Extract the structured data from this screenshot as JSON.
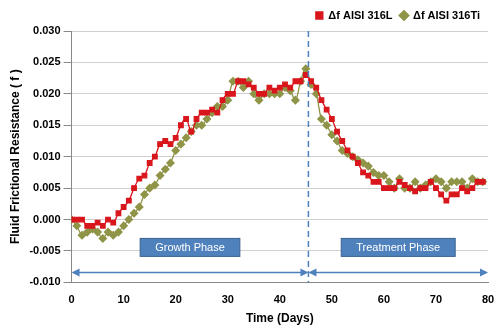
{
  "chart_data": {
    "type": "line",
    "x_label": "Time (Days)",
    "y_label": "Fluid Frictional Resistance ( f )",
    "x": [
      0,
      1,
      2,
      3,
      4,
      5,
      6,
      7,
      8,
      9,
      10,
      11,
      12,
      13,
      14,
      15,
      16,
      17,
      18,
      19,
      20,
      21,
      22,
      23,
      24,
      25,
      26,
      27,
      28,
      29,
      30,
      31,
      32,
      33,
      34,
      35,
      36,
      37,
      38,
      39,
      40,
      41,
      42,
      43,
      44,
      45,
      46,
      47,
      48,
      49,
      50,
      51,
      52,
      53,
      54,
      55,
      56,
      57,
      58,
      59,
      60,
      61,
      62,
      63,
      64,
      65,
      66,
      67,
      68,
      69,
      70,
      71,
      72,
      73,
      74,
      75,
      76,
      77,
      78,
      79
    ],
    "series": [
      {
        "name": "Δf AISI 316L",
        "color": "#d9161c",
        "marker": "square",
        "line_style": "solid",
        "values": [
          0,
          0,
          0,
          -0.001,
          -0.001,
          -0.0005,
          -0.001,
          0,
          -0.0005,
          0.001,
          0.002,
          0.003,
          0.005,
          0.0065,
          0.007,
          0.009,
          0.01,
          0.012,
          0.0125,
          0.012,
          0.013,
          0.015,
          0.016,
          0.014,
          0.016,
          0.017,
          0.017,
          0.0175,
          0.017,
          0.019,
          0.02,
          0.02,
          0.022,
          0.022,
          0.0215,
          0.021,
          0.02,
          0.02,
          0.021,
          0.0205,
          0.021,
          0.0215,
          0.021,
          0.022,
          0.022,
          0.023,
          0.022,
          0.021,
          0.019,
          0.0175,
          0.016,
          0.014,
          0.0125,
          0.011,
          0.01,
          0.009,
          0.0075,
          0.007,
          0.006,
          0.006,
          0.005,
          0.005,
          0.005,
          0.006,
          0.0055,
          0.005,
          0.0045,
          0.005,
          0.005,
          0.006,
          0.005,
          0.004,
          0.003,
          0.004,
          0.004,
          0.005,
          0.0045,
          0.005,
          0.006,
          0.006
        ]
      },
      {
        "name": "Δf AISI 316Ti",
        "color": "#8f9447",
        "marker": "diamond",
        "line_style": "solid",
        "values": [
          0,
          -0.001,
          -0.0025,
          -0.002,
          -0.0015,
          -0.002,
          -0.003,
          -0.002,
          -0.0025,
          -0.002,
          -0.001,
          0,
          0.001,
          0.002,
          0.004,
          0.005,
          0.0055,
          0.007,
          0.008,
          0.009,
          0.011,
          0.012,
          0.013,
          0.014,
          0.015,
          0.015,
          0.016,
          0.017,
          0.018,
          0.018,
          0.019,
          0.022,
          0.022,
          0.021,
          0.022,
          0.02,
          0.019,
          0.02,
          0.02,
          0.02,
          0.02,
          0.021,
          0.0205,
          0.019,
          0.022,
          0.024,
          0.0215,
          0.02,
          0.016,
          0.015,
          0.0135,
          0.0125,
          0.011,
          0.0105,
          0.01,
          0.0095,
          0.009,
          0.0085,
          0.0075,
          0.007,
          0.007,
          0.006,
          0.005,
          0.0065,
          0.005,
          0.005,
          0.006,
          0.005,
          0.0055,
          0.006,
          0.0065,
          0.006,
          0.005,
          0.006,
          0.006,
          0.006,
          0.005,
          0.0065,
          0.006,
          0.006
        ]
      }
    ],
    "xlim": [
      0,
      80
    ],
    "xticks": [
      0,
      10,
      20,
      30,
      40,
      50,
      60,
      70,
      80
    ],
    "ylim": [
      -0.01,
      0.03
    ],
    "yticks": [
      {
        "value": -0.01,
        "label": "-0.010"
      },
      {
        "value": -0.005,
        "label": "-0.005"
      },
      {
        "value": 0,
        "label": "0.000"
      },
      {
        "value": 0.005,
        "label": "0.005"
      },
      {
        "value": 0.01,
        "label": "0.010"
      },
      {
        "value": 0.015,
        "label": "0.015"
      },
      {
        "value": 0.02,
        "label": "0.020"
      },
      {
        "value": 0.025,
        "label": "0.025"
      },
      {
        "value": 0.03,
        "label": "0.030"
      }
    ],
    "grid": "y",
    "legend": "top-right",
    "phases": [
      {
        "label": "Growth Phase",
        "start": 0,
        "end": 45.5
      },
      {
        "label": "Treatment Phase",
        "start": 45.5,
        "end": 80
      }
    ]
  }
}
